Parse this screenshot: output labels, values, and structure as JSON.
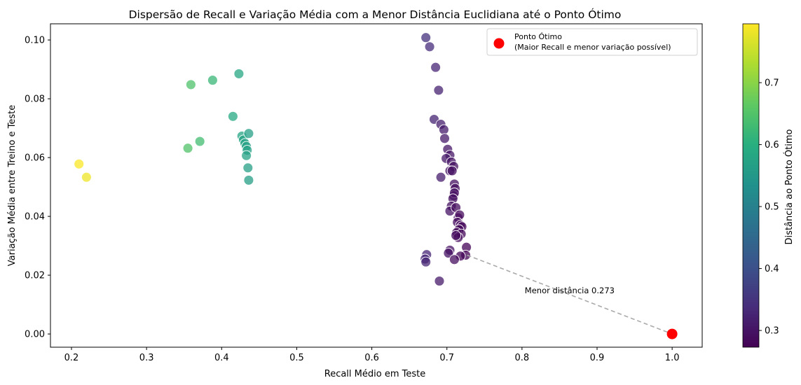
{
  "chart_data": {
    "type": "scatter",
    "title": "Dispersão de Recall e Variação Média com a Menor Distância Euclidiana até o Ponto Ótimo",
    "xlabel": "Recall Médio em Teste",
    "ylabel": "Variação Média entre Treino e Teste",
    "xlim": [
      0.172,
      1.04
    ],
    "ylim": [
      -0.0045,
      0.1055
    ],
    "xticks": [
      "0.2",
      "0.3",
      "0.4",
      "0.5",
      "0.6",
      "0.7",
      "0.8",
      "0.9",
      "1.0"
    ],
    "yticks": [
      "0.00",
      "0.02",
      "0.04",
      "0.06",
      "0.08",
      "0.10"
    ],
    "grid": false,
    "colormap": "viridis",
    "colorbar": {
      "label": "Distância ao Ponto Ótimo",
      "min": 0.273,
      "max": 0.795,
      "ticks": [
        "0.3",
        "0.4",
        "0.5",
        "0.6",
        "0.7"
      ]
    },
    "points": [
      {
        "x": 0.21,
        "y": 0.0578
      },
      {
        "x": 0.22,
        "y": 0.0533
      },
      {
        "x": 0.355,
        "y": 0.0632
      },
      {
        "x": 0.359,
        "y": 0.0848
      },
      {
        "x": 0.371,
        "y": 0.0655
      },
      {
        "x": 0.388,
        "y": 0.0863
      },
      {
        "x": 0.415,
        "y": 0.074
      },
      {
        "x": 0.423,
        "y": 0.0885
      },
      {
        "x": 0.427,
        "y": 0.0673
      },
      {
        "x": 0.429,
        "y": 0.066
      },
      {
        "x": 0.431,
        "y": 0.0648
      },
      {
        "x": 0.433,
        "y": 0.0638
      },
      {
        "x": 0.434,
        "y": 0.0625
      },
      {
        "x": 0.433,
        "y": 0.0607
      },
      {
        "x": 0.436,
        "y": 0.0682
      },
      {
        "x": 0.435,
        "y": 0.0565
      },
      {
        "x": 0.436,
        "y": 0.0523
      },
      {
        "x": 0.672,
        "y": 0.1008
      },
      {
        "x": 0.677,
        "y": 0.0977
      },
      {
        "x": 0.685,
        "y": 0.0907
      },
      {
        "x": 0.689,
        "y": 0.0829
      },
      {
        "x": 0.683,
        "y": 0.073
      },
      {
        "x": 0.692,
        "y": 0.0713
      },
      {
        "x": 0.696,
        "y": 0.0695
      },
      {
        "x": 0.697,
        "y": 0.0665
      },
      {
        "x": 0.701,
        "y": 0.0628
      },
      {
        "x": 0.704,
        "y": 0.0608
      },
      {
        "x": 0.699,
        "y": 0.0597
      },
      {
        "x": 0.706,
        "y": 0.0585
      },
      {
        "x": 0.709,
        "y": 0.057
      },
      {
        "x": 0.704,
        "y": 0.0555
      },
      {
        "x": 0.692,
        "y": 0.0533
      },
      {
        "x": 0.707,
        "y": 0.0555
      },
      {
        "x": 0.71,
        "y": 0.051
      },
      {
        "x": 0.711,
        "y": 0.0495
      },
      {
        "x": 0.709,
        "y": 0.047
      },
      {
        "x": 0.71,
        "y": 0.048
      },
      {
        "x": 0.708,
        "y": 0.046
      },
      {
        "x": 0.706,
        "y": 0.0435
      },
      {
        "x": 0.704,
        "y": 0.0418
      },
      {
        "x": 0.712,
        "y": 0.043
      },
      {
        "x": 0.715,
        "y": 0.0395
      },
      {
        "x": 0.717,
        "y": 0.0405
      },
      {
        "x": 0.714,
        "y": 0.038
      },
      {
        "x": 0.718,
        "y": 0.037
      },
      {
        "x": 0.72,
        "y": 0.0365
      },
      {
        "x": 0.716,
        "y": 0.0355
      },
      {
        "x": 0.713,
        "y": 0.0345
      },
      {
        "x": 0.719,
        "y": 0.034
      },
      {
        "x": 0.715,
        "y": 0.0328
      },
      {
        "x": 0.712,
        "y": 0.0335
      },
      {
        "x": 0.726,
        "y": 0.0295
      },
      {
        "x": 0.725,
        "y": 0.0268
      },
      {
        "x": 0.718,
        "y": 0.0265
      },
      {
        "x": 0.704,
        "y": 0.0285
      },
      {
        "x": 0.702,
        "y": 0.0275
      },
      {
        "x": 0.71,
        "y": 0.0253
      },
      {
        "x": 0.673,
        "y": 0.027
      },
      {
        "x": 0.671,
        "y": 0.0255
      },
      {
        "x": 0.672,
        "y": 0.0245
      },
      {
        "x": 0.69,
        "y": 0.018
      }
    ],
    "optimal_point": {
      "x": 1.0,
      "y": 0.0,
      "color": "#ff0000"
    },
    "closest_point": {
      "x": 0.727,
      "y": 0.0268
    },
    "annotation": "Menor distância 0.273",
    "legend": {
      "placement": "top-right",
      "label": "Ponto Ótimo\n(Maior Recall e menor variação possível)"
    }
  }
}
